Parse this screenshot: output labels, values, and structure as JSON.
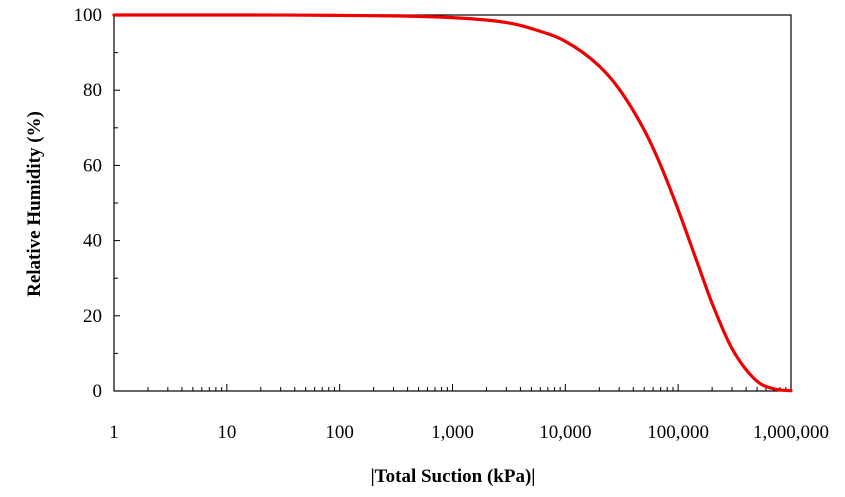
{
  "chart_data": {
    "type": "line",
    "xlabel": "|Total Suction (kPa)|",
    "ylabel": "Relative Humidity (%)",
    "x_scale": "log",
    "xlim": [
      1,
      1000000
    ],
    "ylim": [
      0,
      100
    ],
    "x_ticks": [
      1,
      10,
      100,
      1000,
      10000,
      100000,
      1000000
    ],
    "x_tick_labels": [
      "1",
      "10",
      "100",
      "1,000",
      "10,000",
      "100,000",
      "1,000,000"
    ],
    "y_ticks": [
      0,
      20,
      40,
      60,
      80,
      100
    ],
    "y_tick_labels": [
      "0",
      "20",
      "40",
      "60",
      "80",
      "100"
    ],
    "grid": false,
    "legend": "none",
    "series": [
      {
        "color": "#ee0000",
        "x": [
          1,
          10,
          100,
          1000,
          3000,
          5000,
          10000,
          20000,
          30000,
          50000,
          70000,
          100000,
          150000,
          200000,
          300000,
          500000,
          700000,
          1000000
        ],
        "y": [
          100,
          100,
          99.9,
          99.3,
          98,
          96.4,
          93,
          86.4,
          80.3,
          69.4,
          60,
          48.2,
          33.6,
          23.3,
          11.3,
          2.6,
          0.6,
          0.07
        ]
      }
    ]
  }
}
